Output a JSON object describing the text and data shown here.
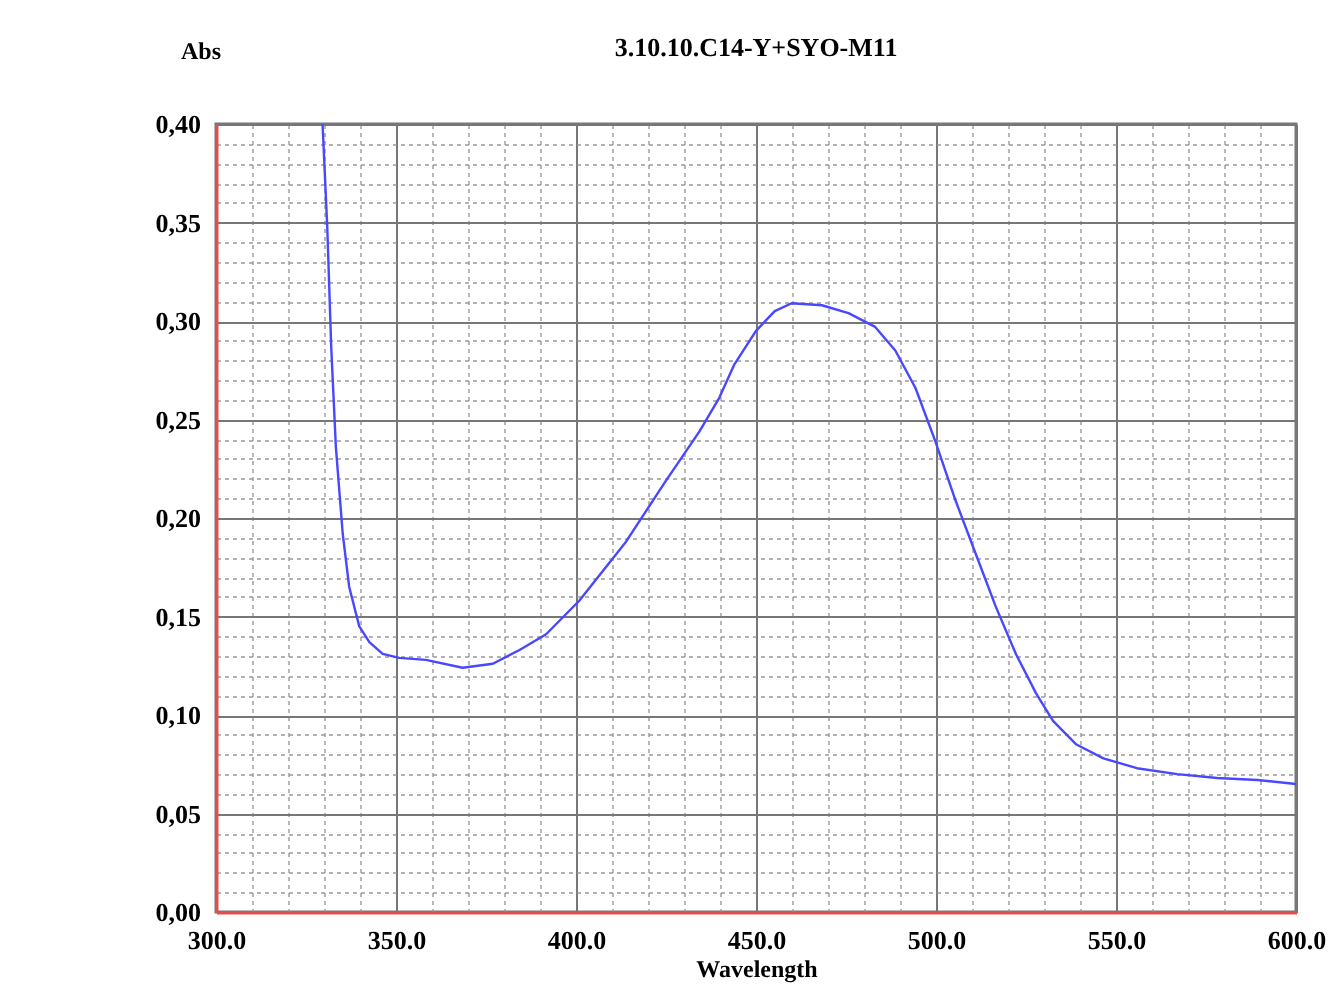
{
  "chart_data": {
    "type": "line",
    "title": "3.10.10.C14-Y+SYO-M11",
    "xlabel": "Wavelength",
    "ylabel": "Abs",
    "color": "#4848ff",
    "grid": true,
    "marker": "none",
    "x": [
      329.6,
      330.9,
      332,
      333.3,
      335.2,
      337,
      339.8,
      342.6,
      346.3,
      350.9,
      358.3,
      368.5,
      376.9,
      384.3,
      391.7,
      400.9,
      413.9,
      425,
      434.3,
      439.8,
      444,
      450,
      455.2,
      459.9,
      468.3,
      475.7,
      483.1,
      488.7,
      494.3,
      499.8,
      505.4,
      511,
      516.6,
      522.2,
      527.8,
      532.5,
      539,
      546.5,
      555.8,
      567,
      578.1,
      589.3,
      600
    ],
    "values": [
      0.4,
      0.348,
      0.287,
      0.236,
      0.192,
      0.165,
      0.145,
      0.137,
      0.131,
      0.129,
      0.128,
      0.124,
      0.126,
      0.133,
      0.141,
      0.158,
      0.188,
      0.219,
      0.244,
      0.261,
      0.278,
      0.295,
      0.305,
      0.309,
      0.308,
      0.304,
      0.297,
      0.285,
      0.266,
      0.239,
      0.209,
      0.182,
      0.155,
      0.131,
      0.111,
      0.097,
      0.085,
      0.078,
      0.073,
      0.07,
      0.068,
      0.067,
      0.065
    ],
    "xlim": [
      300,
      600
    ],
    "ylim": [
      0,
      0.4
    ],
    "xticks": [
      {
        "value": 300,
        "label": "300.0"
      },
      {
        "value": 310,
        "label": null
      },
      {
        "value": 320,
        "label": null
      },
      {
        "value": 330,
        "label": null
      },
      {
        "value": 340,
        "label": null
      },
      {
        "value": 350,
        "label": "350.0"
      },
      {
        "value": 360,
        "label": null
      },
      {
        "value": 370,
        "label": null
      },
      {
        "value": 380,
        "label": null
      },
      {
        "value": 390,
        "label": null
      },
      {
        "value": 400,
        "label": "400.0"
      },
      {
        "value": 410,
        "label": null
      },
      {
        "value": 420,
        "label": null
      },
      {
        "value": 430,
        "label": null
      },
      {
        "value": 440,
        "label": null
      },
      {
        "value": 450,
        "label": "450.0"
      },
      {
        "value": 460,
        "label": null
      },
      {
        "value": 470,
        "label": null
      },
      {
        "value": 480,
        "label": null
      },
      {
        "value": 490,
        "label": null
      },
      {
        "value": 500,
        "label": "500.0"
      },
      {
        "value": 510,
        "label": null
      },
      {
        "value": 520,
        "label": null
      },
      {
        "value": 530,
        "label": null
      },
      {
        "value": 540,
        "label": null
      },
      {
        "value": 550,
        "label": "550.0"
      },
      {
        "value": 560,
        "label": null
      },
      {
        "value": 570,
        "label": null
      },
      {
        "value": 580,
        "label": null
      },
      {
        "value": 590,
        "label": null
      },
      {
        "value": 600,
        "label": "600.0"
      }
    ],
    "yticks": [
      {
        "value": 0,
        "label": "0,00"
      },
      {
        "value": 0.01,
        "label": null
      },
      {
        "value": 0.02,
        "label": null
      },
      {
        "value": 0.03,
        "label": null
      },
      {
        "value": 0.04,
        "label": null
      },
      {
        "value": 0.05,
        "label": "0,05"
      },
      {
        "value": 0.06,
        "label": null
      },
      {
        "value": 0.07,
        "label": null
      },
      {
        "value": 0.08,
        "label": null
      },
      {
        "value": 0.09,
        "label": null
      },
      {
        "value": 0.1,
        "label": "0,10"
      },
      {
        "value": 0.11,
        "label": null
      },
      {
        "value": 0.12,
        "label": null
      },
      {
        "value": 0.13,
        "label": null
      },
      {
        "value": 0.14,
        "label": null
      },
      {
        "value": 0.15,
        "label": "0,15"
      },
      {
        "value": 0.16,
        "label": null
      },
      {
        "value": 0.17,
        "label": null
      },
      {
        "value": 0.18,
        "label": null
      },
      {
        "value": 0.19,
        "label": null
      },
      {
        "value": 0.2,
        "label": "0,20"
      },
      {
        "value": 0.21,
        "label": null
      },
      {
        "value": 0.22,
        "label": null
      },
      {
        "value": 0.23,
        "label": null
      },
      {
        "value": 0.24,
        "label": null
      },
      {
        "value": 0.25,
        "label": "0,25"
      },
      {
        "value": 0.26,
        "label": null
      },
      {
        "value": 0.27,
        "label": null
      },
      {
        "value": 0.28,
        "label": null
      },
      {
        "value": 0.29,
        "label": null
      },
      {
        "value": 0.3,
        "label": "0,30"
      },
      {
        "value": 0.31,
        "label": null
      },
      {
        "value": 0.32,
        "label": null
      },
      {
        "value": 0.33,
        "label": null
      },
      {
        "value": 0.34,
        "label": null
      },
      {
        "value": 0.35,
        "label": "0,35"
      },
      {
        "value": 0.36,
        "label": null
      },
      {
        "value": 0.37,
        "label": null
      },
      {
        "value": 0.38,
        "label": null
      },
      {
        "value": 0.39,
        "label": null
      },
      {
        "value": 0.4,
        "label": "0,40"
      }
    ]
  }
}
